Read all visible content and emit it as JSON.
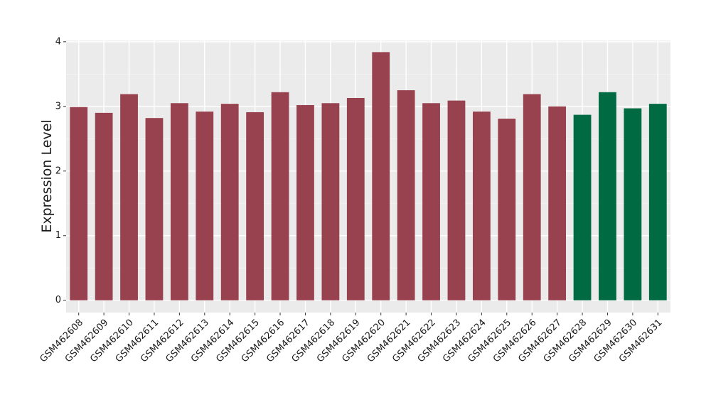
{
  "chart_data": {
    "type": "bar",
    "y_label": "Expression Level",
    "categories": [
      "GSM462608",
      "GSM462609",
      "GSM462610",
      "GSM462611",
      "GSM462612",
      "GSM462613",
      "GSM462614",
      "GSM462615",
      "GSM462616",
      "GSM462617",
      "GSM462618",
      "GSM462619",
      "GSM462620",
      "GSM462621",
      "GSM462622",
      "GSM462623",
      "GSM462624",
      "GSM462625",
      "GSM462626",
      "GSM462627",
      "GSM462628",
      "GSM462629",
      "GSM462630",
      "GSM462631"
    ],
    "values": [
      2.99,
      2.9,
      3.19,
      2.82,
      3.05,
      2.92,
      3.04,
      2.91,
      3.22,
      3.02,
      3.05,
      3.13,
      3.84,
      3.25,
      3.05,
      3.09,
      2.92,
      2.81,
      3.19,
      3.0,
      2.87,
      3.22,
      2.97,
      3.04
    ],
    "colors": [
      "#99424f",
      "#99424f",
      "#99424f",
      "#99424f",
      "#99424f",
      "#99424f",
      "#99424f",
      "#99424f",
      "#99424f",
      "#99424f",
      "#99424f",
      "#99424f",
      "#99424f",
      "#99424f",
      "#99424f",
      "#99424f",
      "#99424f",
      "#99424f",
      "#99424f",
      "#99424f",
      "#006a43",
      "#006a43",
      "#006a43",
      "#006a43"
    ],
    "ylim": [
      -0.19,
      4.02
    ],
    "yticks": [
      0,
      1,
      2,
      3,
      4
    ],
    "grid": true
  }
}
